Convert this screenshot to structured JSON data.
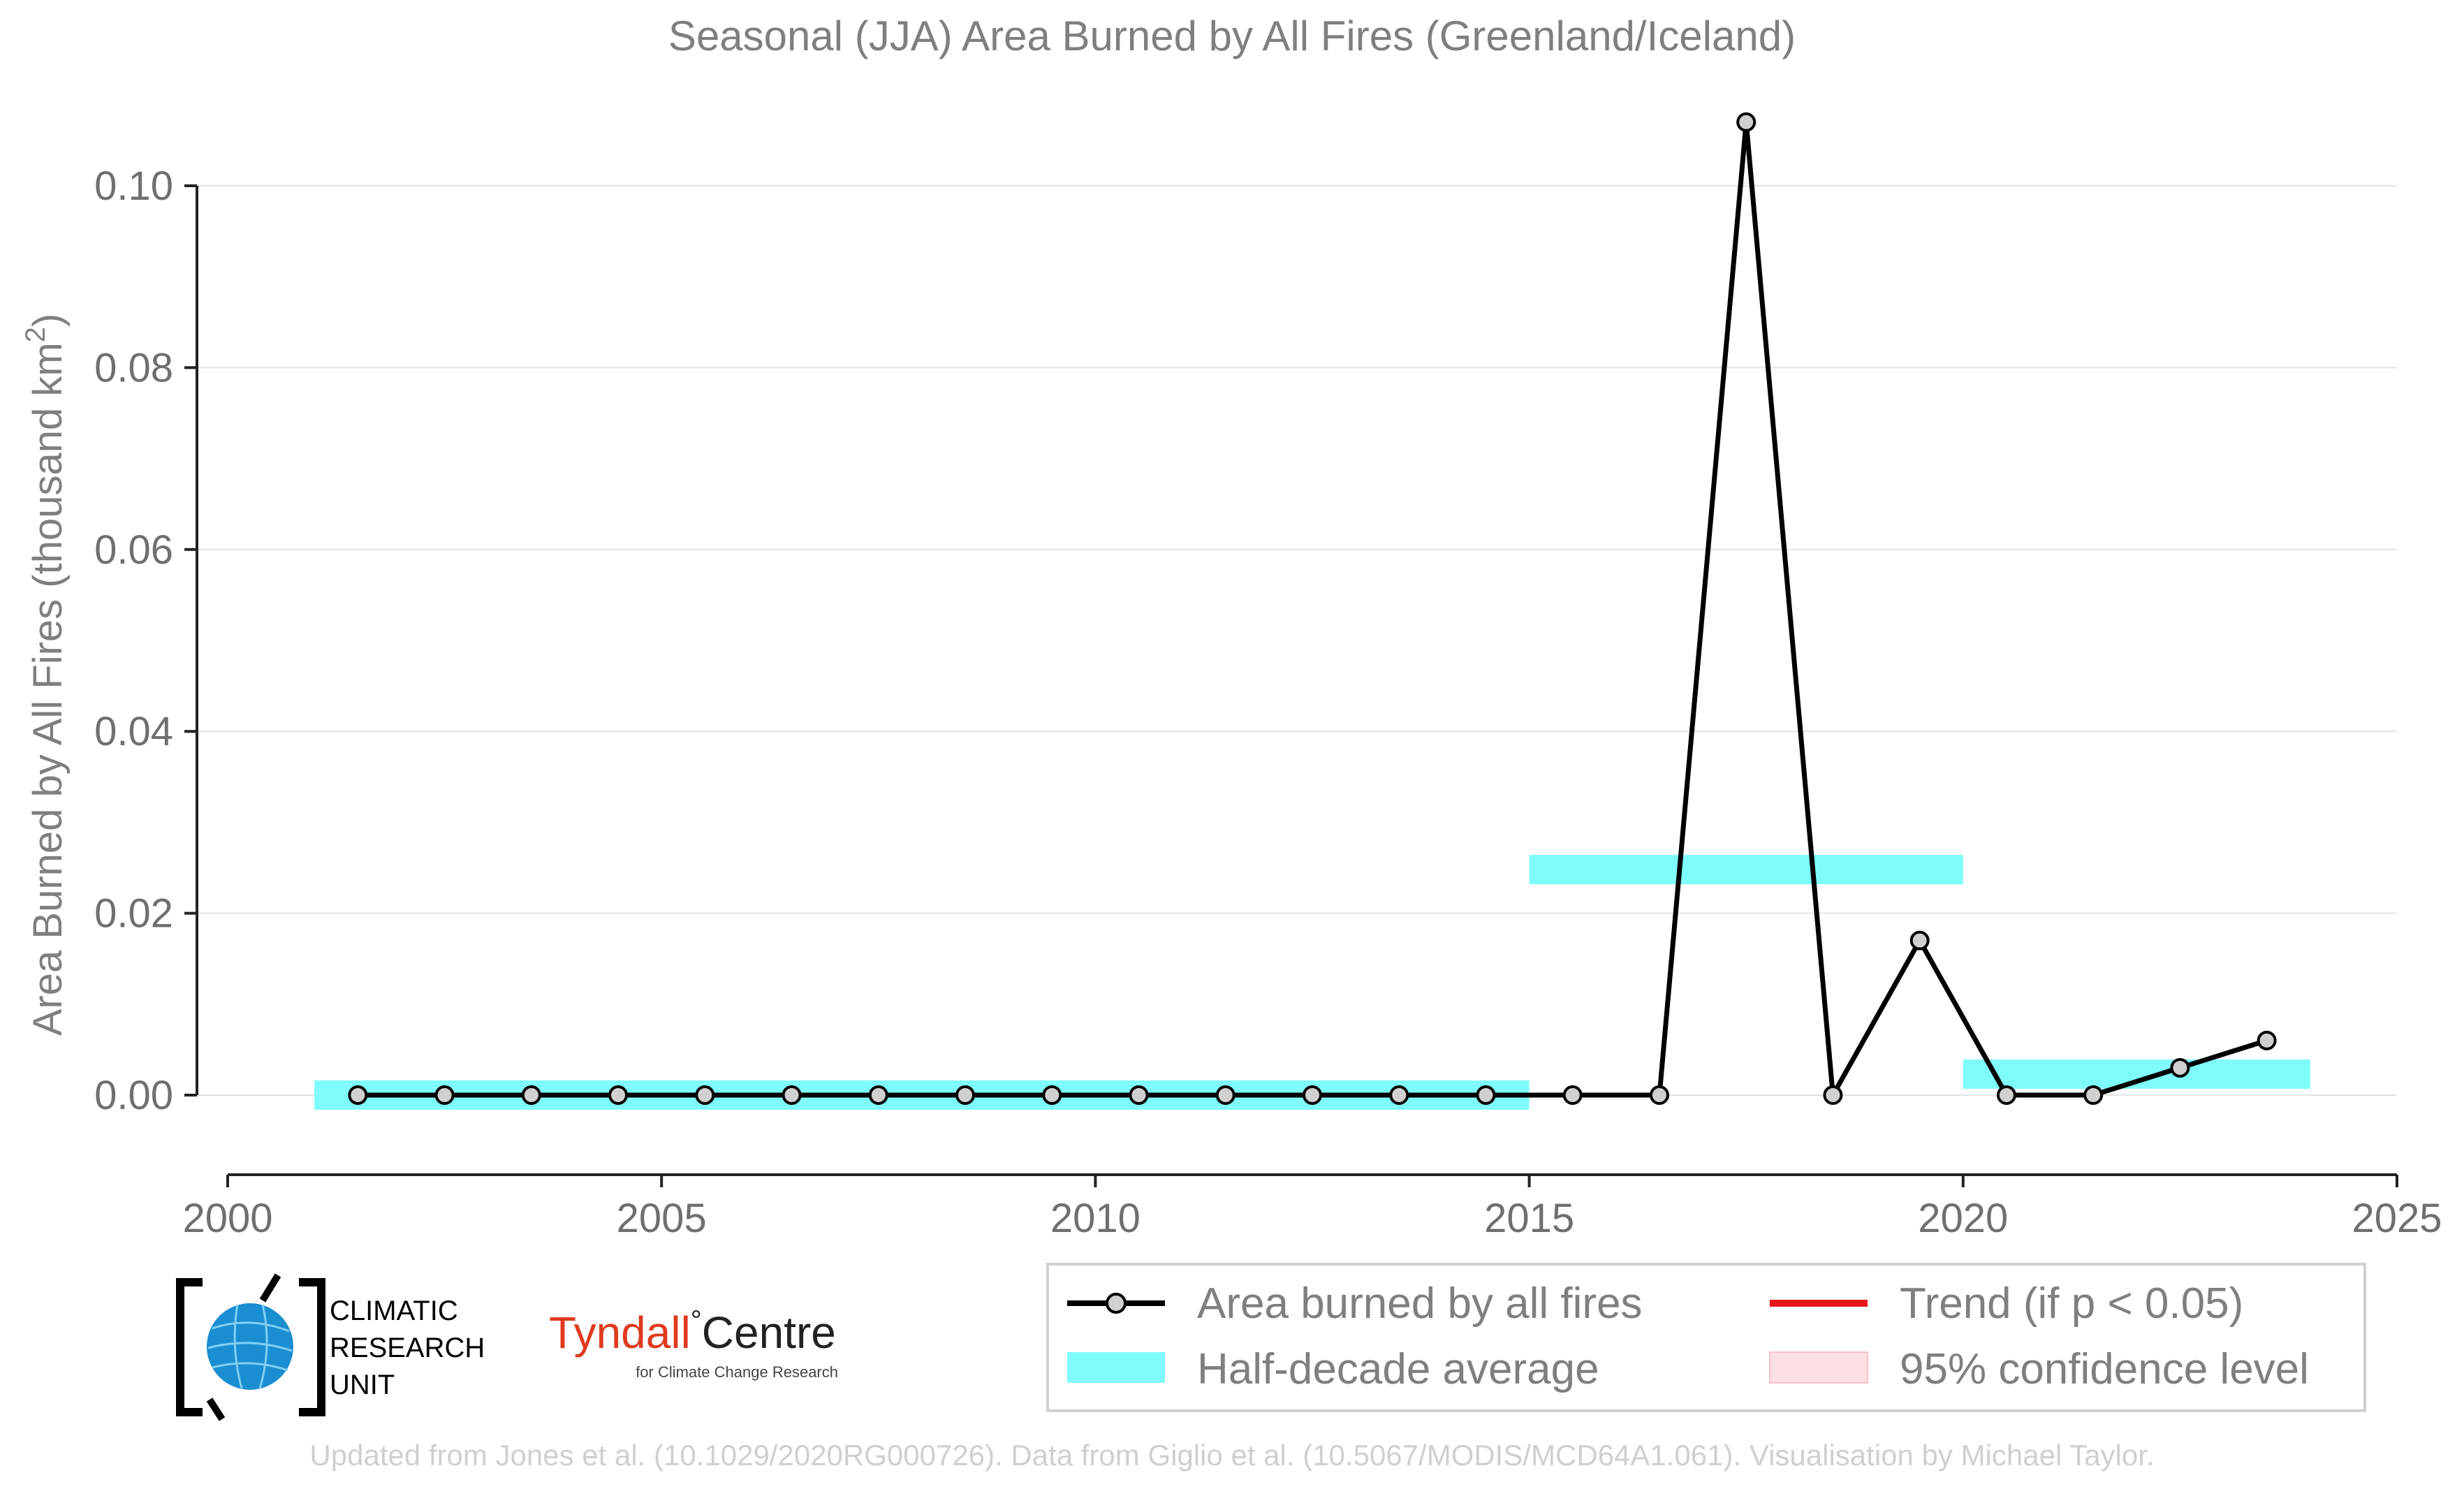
{
  "chart_data": {
    "type": "line",
    "title": "Seasonal (JJA) Area Burned by All Fires (Greenland/Iceland)",
    "xlabel": "",
    "ylabel": "Area Burned by All Fires (thousand km",
    "ylabel_sup": "2",
    "ylabel_end": ")",
    "xlim": [
      2000,
      2025
    ],
    "ylim": [
      -0.009,
      0.11
    ],
    "x_ticks": [
      2000,
      2005,
      2010,
      2015,
      2020,
      2025
    ],
    "y_ticks": [
      0.0,
      0.02,
      0.04,
      0.06,
      0.08,
      0.1
    ],
    "y_tick_labels": [
      "0.00",
      "0.02",
      "0.04",
      "0.06",
      "0.08",
      "0.10"
    ],
    "grid": "horizontal",
    "series": [
      {
        "name": "Area burned by all fires",
        "color": "#000000",
        "x": [
          2001.5,
          2002.5,
          2003.5,
          2004.5,
          2005.5,
          2006.5,
          2007.5,
          2008.5,
          2009.5,
          2010.5,
          2011.5,
          2012.5,
          2013.5,
          2014.5,
          2015.5,
          2016.5,
          2017.5,
          2018.5,
          2019.5,
          2020.5,
          2021.5,
          2022.5,
          2023.5
        ],
        "values": [
          0,
          0,
          0,
          0,
          0,
          0,
          0,
          0,
          0,
          0,
          0,
          0,
          0,
          0,
          0,
          0,
          0.107,
          0,
          0.017,
          0,
          0,
          0.003,
          0.006
        ]
      }
    ],
    "half_decade_averages": [
      {
        "x_start": 2001,
        "x_end": 2015,
        "value": 0.0
      },
      {
        "x_start": 2015,
        "x_end": 2020,
        "value": 0.0248
      },
      {
        "x_start": 2020,
        "x_end": 2024,
        "value": 0.0023
      }
    ],
    "colors": {
      "line": "#000000",
      "marker_fill": "#d0d0d0",
      "half_decade": "#7ffcfc",
      "trend": "#e8151b",
      "confidence": "#fde0e3"
    },
    "legend": {
      "placement": "bottom-right",
      "entries": [
        {
          "label": "Area burned by all fires",
          "kind": "line-marker"
        },
        {
          "label": "Trend (if p < 0.05)",
          "kind": "red-line"
        },
        {
          "label": "Half-decade average",
          "kind": "cyan-band"
        },
        {
          "label": "95% confidence level",
          "kind": "pink-band"
        }
      ]
    },
    "credit": "Updated from Jones et al. (10.1029/2020RG000726). Data from Giglio et al. (10.5067/MODIS/MCD64A1.061). Visualisation by Michael Taylor.",
    "logos": {
      "cru_lines": [
        "CLIMATIC",
        "RESEARCH",
        "UNIT"
      ],
      "tyndall_main": "Tyndall",
      "tyndall_degree": "°",
      "tyndall_centre": "Centre",
      "tyndall_sub": "for Climate Change Research"
    }
  }
}
